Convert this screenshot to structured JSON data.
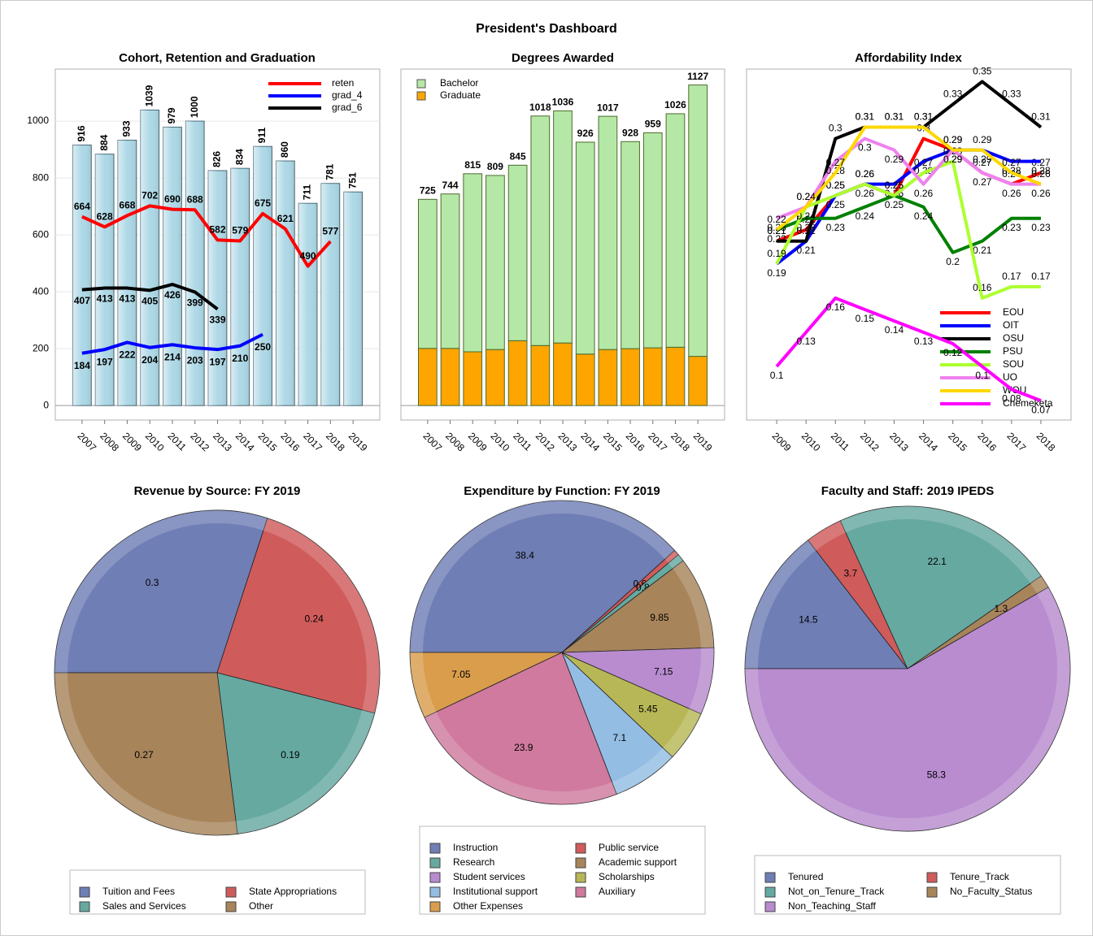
{
  "title": "President's Dashboard",
  "chart_data": [
    {
      "type": "bar_line",
      "title": "Cohort, Retention and Graduation",
      "categories": [
        "2007",
        "2008",
        "2009",
        "2010",
        "2011",
        "2012",
        "2013",
        "2014",
        "2015",
        "2016",
        "2017",
        "2018",
        "2019"
      ],
      "values": [
        916,
        884,
        933,
        1039,
        979,
        1000,
        826,
        834,
        911,
        860,
        711,
        781,
        751
      ],
      "color": "#add8e6",
      "series": [
        {
          "name": "reten",
          "color": "#ff0000",
          "values": [
            664,
            628,
            668,
            702,
            690,
            688,
            582,
            579,
            675,
            621,
            490,
            577,
            null
          ]
        },
        {
          "name": "grad_4",
          "color": "#0000ff",
          "values": [
            184,
            197,
            222,
            204,
            214,
            203,
            197,
            210,
            250,
            null,
            null,
            null,
            null
          ]
        },
        {
          "name": "grad_6",
          "color": "#000000",
          "values": [
            407,
            413,
            413,
            405,
            426,
            399,
            339,
            null,
            null,
            null,
            null,
            null,
            null
          ]
        }
      ],
      "ylim": [
        -51,
        1183
      ],
      "yticks": [
        0,
        200,
        400,
        600,
        800,
        1000
      ],
      "grid": true,
      "legend": "upper right"
    },
    {
      "type": "stacked_bar",
      "title": "Degrees Awarded",
      "categories": [
        "2007",
        "2008",
        "2009",
        "2010",
        "2011",
        "2012",
        "2013",
        "2014",
        "2015",
        "2016",
        "2017",
        "2018",
        "2019"
      ],
      "series": [
        {
          "name": "Graduate",
          "color": "#ffa500",
          "values": [
            201,
            201,
            189,
            197,
            228,
            211,
            220,
            181,
            197,
            200,
            203,
            205,
            173
          ]
        },
        {
          "name": "Bachelor",
          "color": "#b5e8a6",
          "values": [
            524,
            543,
            626,
            612,
            617,
            807,
            816,
            745,
            820,
            728,
            756,
            821,
            954
          ]
        }
      ],
      "total_labels": [
        "725",
        "744",
        "815",
        "809",
        "845",
        "1018",
        "1036",
        "926",
        "1017",
        "928",
        "959",
        "1026",
        "1127"
      ],
      "ylim": [
        -51,
        1183
      ],
      "legend": "upper left"
    },
    {
      "type": "line",
      "title": "Affordability Index",
      "categories": [
        "2009",
        "2010",
        "2011",
        "2012",
        "2013",
        "2014",
        "2015",
        "2016",
        "2017",
        "2018"
      ],
      "series": [
        {
          "name": "EOU",
          "color": "#ff0000",
          "values": [
            0.21,
            0.22,
            0.25,
            0.26,
            0.25,
            0.3,
            0.29,
            0.27,
            0.26,
            0.27
          ]
        },
        {
          "name": "OIT",
          "color": "#0000ff",
          "values": [
            0.19,
            0.21,
            0.25,
            0.26,
            0.26,
            0.28,
            0.29,
            0.29,
            0.28,
            0.28
          ]
        },
        {
          "name": "OSU",
          "color": "#000000",
          "values": [
            0.21,
            0.21,
            0.3,
            0.31,
            0.31,
            0.31,
            0.33,
            0.35,
            0.33,
            0.31
          ]
        },
        {
          "name": "PSU",
          "color": "#008000",
          "values": [
            0.22,
            0.23,
            0.23,
            0.24,
            0.25,
            0.24,
            0.2,
            0.21,
            0.23,
            0.23
          ]
        },
        {
          "name": "SOU",
          "color": "#adff2f",
          "values": [
            0.19,
            0.24,
            0.25,
            0.26,
            0.25,
            0.27,
            0.28,
            0.16,
            0.17,
            0.17
          ]
        },
        {
          "name": "UO",
          "color": "#ee82ee",
          "values": [
            0.23,
            0.24,
            0.28,
            0.3,
            0.29,
            0.26,
            0.29,
            0.27,
            0.26,
            0.26
          ]
        },
        {
          "name": "WOU",
          "color": "#ffd700",
          "values": [
            0.22,
            0.24,
            0.27,
            0.31,
            0.31,
            0.31,
            0.29,
            0.29,
            0.27,
            0.26
          ]
        },
        {
          "name": "Chemeketa",
          "color": "#ff00ff",
          "values": [
            0.1,
            0.13,
            0.16,
            0.15,
            0.14,
            0.13,
            0.12,
            0.1,
            0.08,
            0.07
          ]
        }
      ],
      "ylim": [
        0.053,
        0.361
      ],
      "legend": "lower right"
    },
    {
      "type": "pie",
      "title": "Revenue by Source: FY 2019",
      "categories": [
        "Tuition and Fees",
        "State Appropriations",
        "Sales and Services",
        "Other"
      ],
      "values": [
        0.3,
        0.24,
        0.19,
        0.27
      ],
      "colors": [
        "#6f7eb5",
        "#d05b5b",
        "#66a9a1",
        "#a8845b"
      ]
    },
    {
      "type": "pie",
      "title": "Expenditure by Function: FY 2019",
      "categories": [
        "Instruction",
        "Public service",
        "Research",
        "Academic support",
        "Student services",
        "Scholarships",
        "Institutional support",
        "Auxiliary",
        "Other Expenses"
      ],
      "values": [
        38.4,
        0.6,
        0.8,
        9.85,
        7.15,
        5.45,
        7.1,
        23.9,
        7.05
      ],
      "colors": [
        "#6f7eb5",
        "#d05b5b",
        "#66a9a1",
        "#a8845b",
        "#b88ccf",
        "#b7b757",
        "#94bde3",
        "#cf7a9e",
        "#d99d4c"
      ]
    },
    {
      "type": "pie",
      "title": "Faculty and Staff: 2019 IPEDS",
      "categories": [
        "Tenured",
        "Tenure_Track",
        "Not_on_Tenure_Track",
        "No_Faculty_Status",
        "Non_Teaching_Staff"
      ],
      "values": [
        14.5,
        3.7,
        22.1,
        1.3,
        58.3
      ],
      "colors": [
        "#6f7eb5",
        "#d05b5b",
        "#66a9a1",
        "#a8845b",
        "#b88ccf"
      ]
    }
  ]
}
